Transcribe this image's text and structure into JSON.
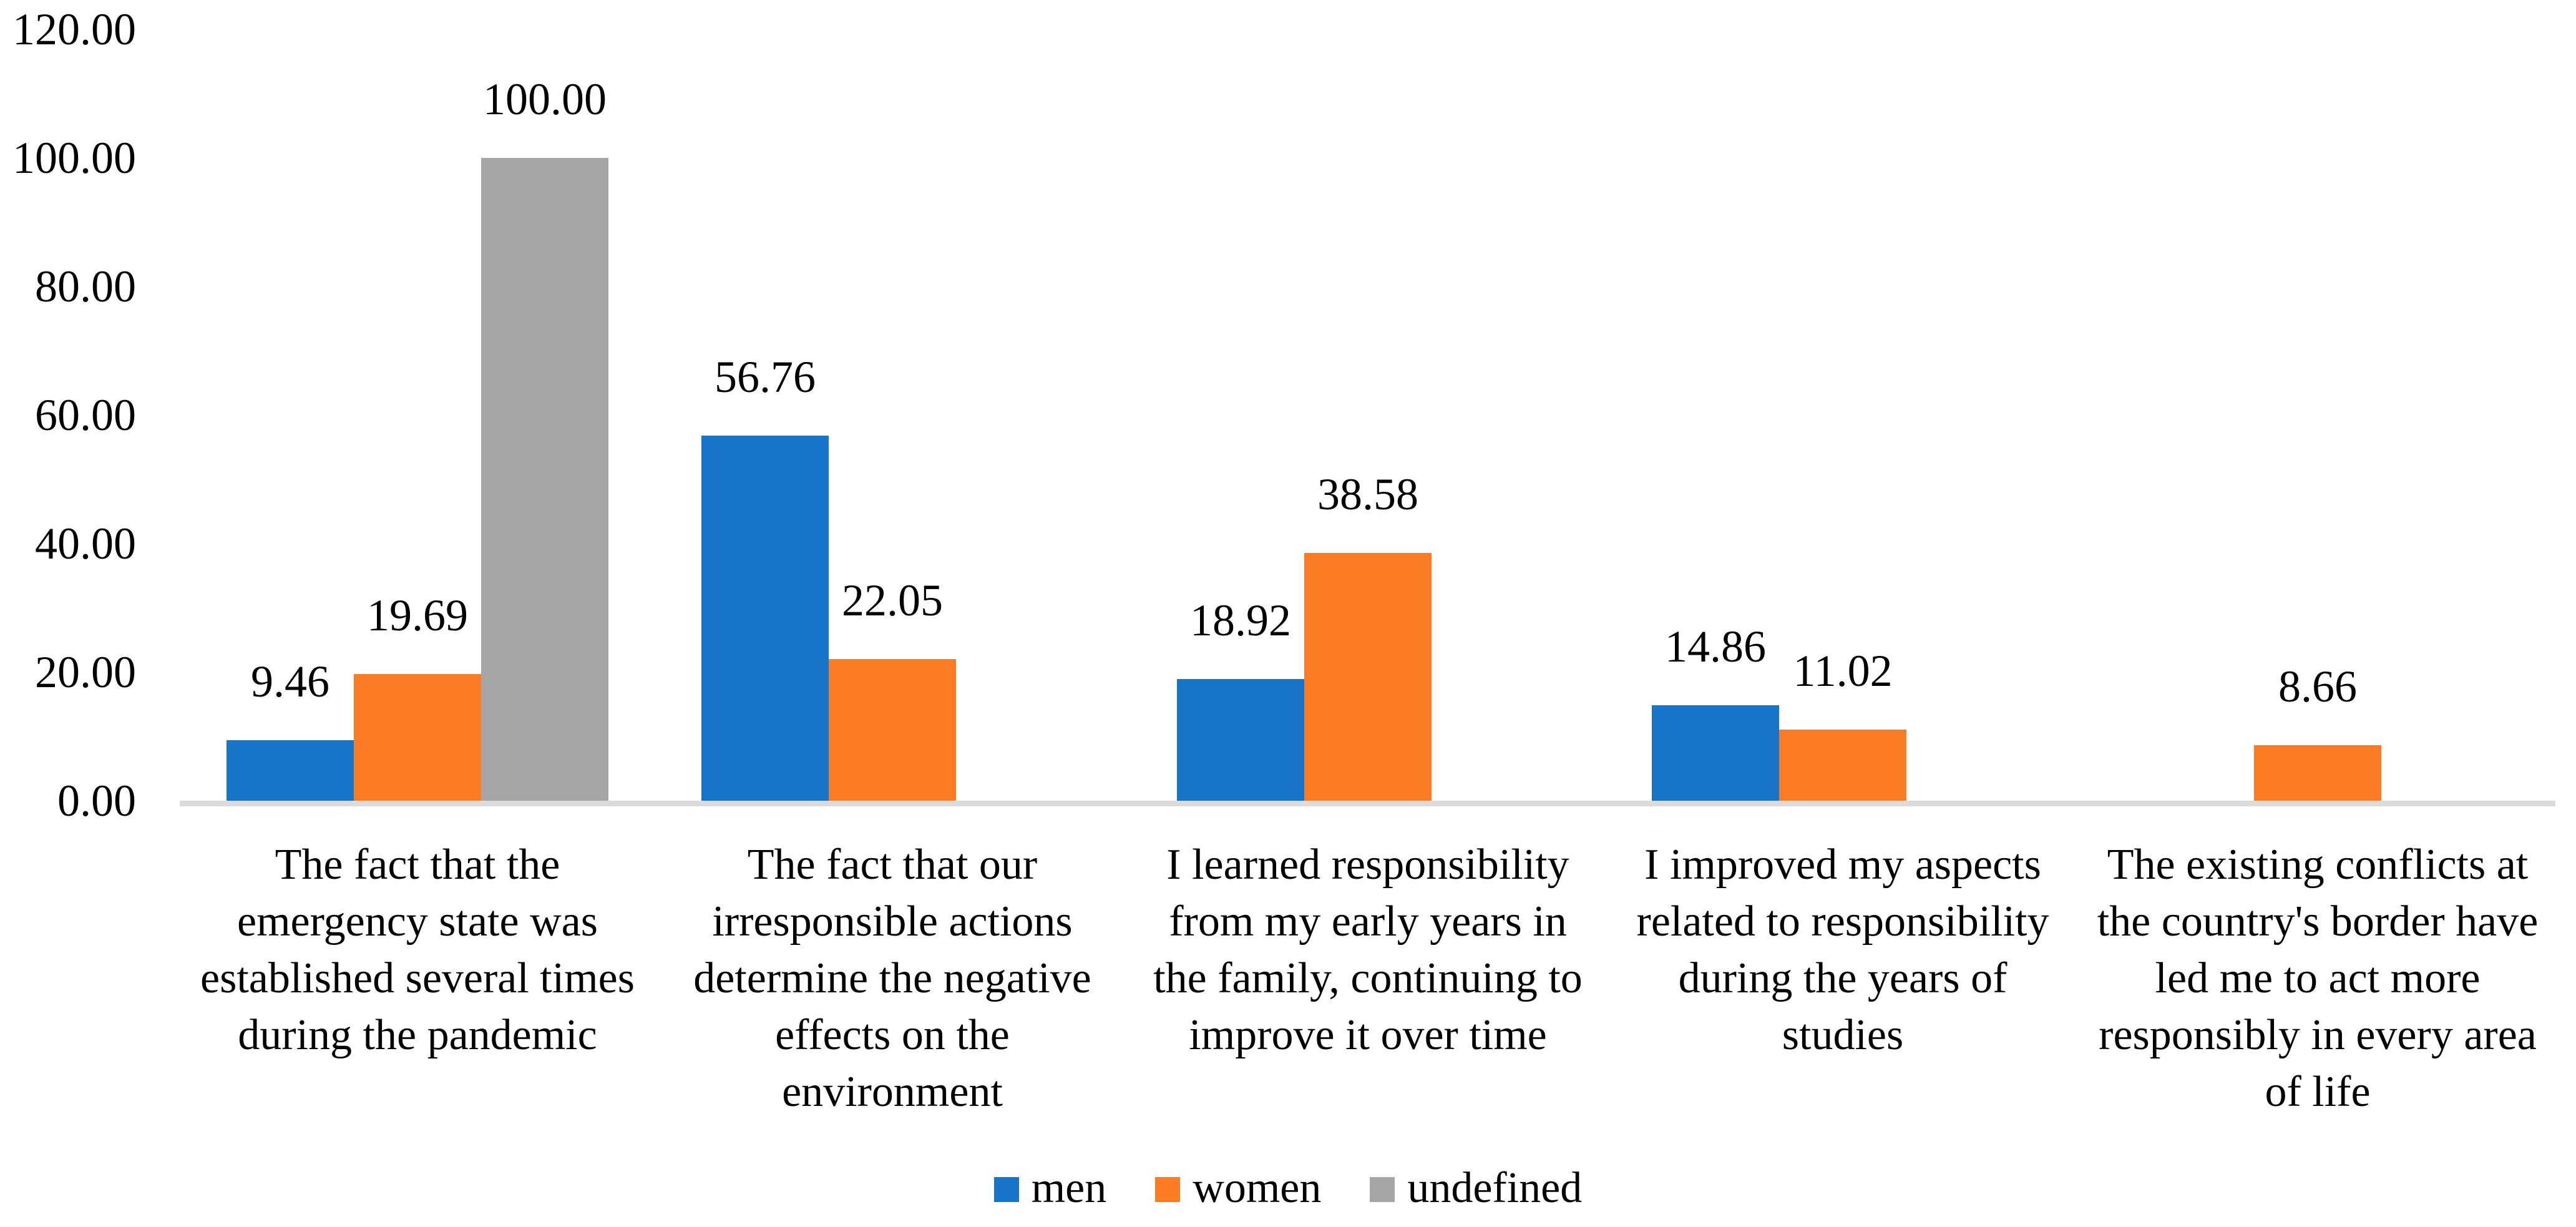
{
  "figure": {
    "background_color": "#FFFFFF",
    "text_color": "#000000"
  },
  "chart_data": {
    "type": "bar",
    "title": "",
    "xlabel": "",
    "ylabel": "",
    "ylim": [
      0,
      120
    ],
    "grid": false,
    "legend_position": "bottom",
    "axis_line_color": "#DBDBDB",
    "categories": [
      "The fact that the\nemergency state was\nestablished several times\nduring the pandemic",
      "The fact that our\nirresponsible actions\ndetermine the negative\neffects on the\nenvironment",
      "I learned responsibility\nfrom my early years in\nthe family, continuing to\nimprove it over time",
      "I improved my aspects\nrelated to responsibility\nduring the years of\nstudies",
      "The existing conflicts at\nthe country's border have\nled me to act more\nresponsibly in every area\nof life"
    ],
    "series": [
      {
        "name": "men",
        "color": "#1774C8",
        "values": [
          9.46,
          56.76,
          18.92,
          14.86,
          null
        ],
        "labels": [
          "9.46",
          "56.76",
          "18.92",
          "14.86",
          null
        ]
      },
      {
        "name": "women",
        "color": "#FC7C25",
        "values": [
          19.69,
          22.05,
          38.58,
          11.02,
          8.66
        ],
        "labels": [
          "19.69",
          "22.05",
          "38.58",
          "11.02",
          "8.66"
        ]
      },
      {
        "name": "undefined",
        "color": "#A6A6A6",
        "values": [
          100.0,
          null,
          null,
          null,
          null
        ],
        "labels": [
          "100.00",
          null,
          null,
          null,
          null
        ]
      }
    ],
    "y_ticks": [
      {
        "value": 0,
        "label": "0.00"
      },
      {
        "value": 20,
        "label": "20.00"
      },
      {
        "value": 40,
        "label": "40.00"
      },
      {
        "value": 60,
        "label": "60.00"
      },
      {
        "value": 80,
        "label": "80.00"
      },
      {
        "value": 100,
        "label": "100.00"
      },
      {
        "value": 120,
        "label": "120.00"
      }
    ]
  }
}
